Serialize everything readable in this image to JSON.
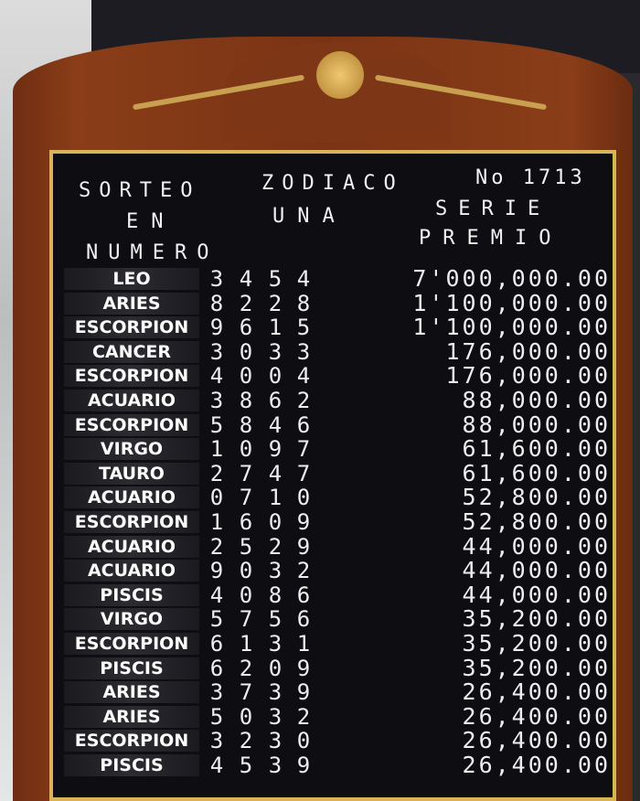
{
  "header": {
    "sorteo": "SORTEO",
    "zodiaco": "ZODIACO",
    "numero_sorteo": "No 1713",
    "en": "EN",
    "una": "UNA",
    "serie": "SERIE",
    "numero": "NUMERO",
    "premio": "PREMIO"
  },
  "rows": [
    {
      "sign": "LEO",
      "digits": [
        "3",
        "4",
        "5",
        "4"
      ],
      "prize": "7'000,000.00"
    },
    {
      "sign": "ARIES",
      "digits": [
        "8",
        "2",
        "2",
        "8"
      ],
      "prize": "1'100,000.00"
    },
    {
      "sign": "ESCORPION",
      "digits": [
        "9",
        "6",
        "1",
        "5"
      ],
      "prize": "1'100,000.00"
    },
    {
      "sign": "CANCER",
      "digits": [
        "3",
        "0",
        "3",
        "3"
      ],
      "prize": "176,000.00"
    },
    {
      "sign": "ESCORPION",
      "digits": [
        "4",
        "0",
        "0",
        "4"
      ],
      "prize": "176,000.00"
    },
    {
      "sign": "ACUARIO",
      "digits": [
        "3",
        "8",
        "6",
        "2"
      ],
      "prize": "88,000.00"
    },
    {
      "sign": "ESCORPION",
      "digits": [
        "5",
        "8",
        "4",
        "6"
      ],
      "prize": "88,000.00"
    },
    {
      "sign": "VIRGO",
      "digits": [
        "1",
        "0",
        "9",
        "7"
      ],
      "prize": "61,600.00"
    },
    {
      "sign": "TAURO",
      "digits": [
        "2",
        "7",
        "4",
        "7"
      ],
      "prize": "61,600.00"
    },
    {
      "sign": "ACUARIO",
      "digits": [
        "0",
        "7",
        "1",
        "0"
      ],
      "prize": "52,800.00"
    },
    {
      "sign": "ESCORPION",
      "digits": [
        "1",
        "6",
        "0",
        "9"
      ],
      "prize": "52,800.00"
    },
    {
      "sign": "ACUARIO",
      "digits": [
        "2",
        "5",
        "2",
        "9"
      ],
      "prize": "44,000.00"
    },
    {
      "sign": "ACUARIO",
      "digits": [
        "9",
        "0",
        "3",
        "2"
      ],
      "prize": "44,000.00"
    },
    {
      "sign": "PISCIS",
      "digits": [
        "4",
        "0",
        "8",
        "6"
      ],
      "prize": "44,000.00"
    },
    {
      "sign": "VIRGO",
      "digits": [
        "5",
        "7",
        "5",
        "6"
      ],
      "prize": "35,200.00"
    },
    {
      "sign": "ESCORPION",
      "digits": [
        "6",
        "1",
        "3",
        "1"
      ],
      "prize": "35,200.00"
    },
    {
      "sign": "PISCIS",
      "digits": [
        "6",
        "2",
        "0",
        "9"
      ],
      "prize": "35,200.00"
    },
    {
      "sign": "ARIES",
      "digits": [
        "3",
        "7",
        "3",
        "9"
      ],
      "prize": "26,400.00"
    },
    {
      "sign": "ARIES",
      "digits": [
        "5",
        "0",
        "3",
        "2"
      ],
      "prize": "26,400.00"
    },
    {
      "sign": "ESCORPION",
      "digits": [
        "3",
        "2",
        "3",
        "0"
      ],
      "prize": "26,400.00"
    },
    {
      "sign": "PISCIS",
      "digits": [
        "4",
        "5",
        "3",
        "9"
      ],
      "prize": "26,400.00"
    }
  ],
  "colors": {
    "board_wood": "#7a3414",
    "panel": "#0d0d12",
    "frame_gold": "#d8b455",
    "text": "#f2f2f2"
  }
}
